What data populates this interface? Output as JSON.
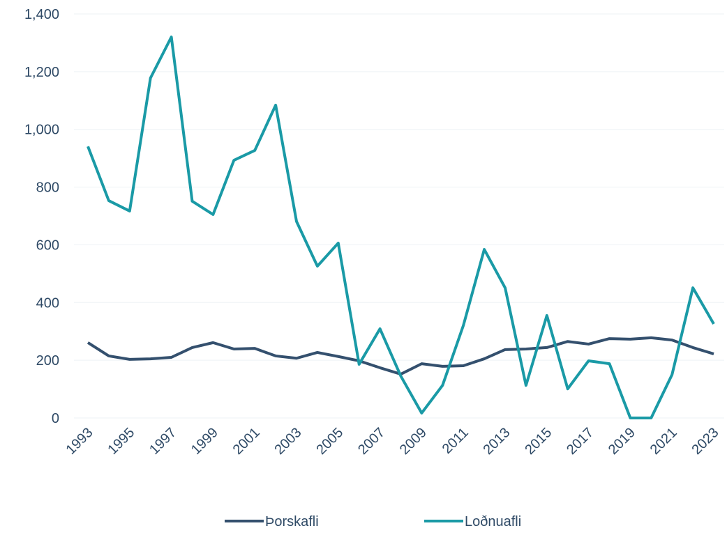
{
  "chart_data": {
    "type": "line",
    "x": [
      1993,
      1994,
      1995,
      1996,
      1997,
      1998,
      1999,
      2000,
      2001,
      2002,
      2003,
      2004,
      2005,
      2006,
      2007,
      2008,
      2009,
      2010,
      2011,
      2012,
      2013,
      2014,
      2015,
      2016,
      2017,
      2018,
      2019,
      2020,
      2021,
      2022,
      2023
    ],
    "xlim": [
      1993,
      2023
    ],
    "xticks": [
      1993,
      1995,
      1997,
      1999,
      2001,
      2003,
      2005,
      2007,
      2009,
      2011,
      2013,
      2015,
      2017,
      2019,
      2021,
      2023
    ],
    "ylim": [
      0,
      1400
    ],
    "yticks": [
      0,
      200,
      400,
      600,
      800,
      {
        "value": 1000,
        "label": "1,000"
      },
      {
        "value": 1200,
        "label": "1,200"
      },
      {
        "value": 1400,
        "label": "1,400"
      }
    ],
    "grid": true,
    "legend": "bottom",
    "series": [
      {
        "name": "Þorskafli",
        "color": "#34506e",
        "values": [
          261,
          215,
          203,
          205,
          210,
          244,
          261,
          239,
          241,
          215,
          207,
          227,
          213,
          198,
          174,
          152,
          188,
          179,
          181,
          205,
          237,
          239,
          244,
          265,
          256,
          275,
          273,
          278,
          270,
          244,
          222
        ]
      },
      {
        "name": "Loðnuafli",
        "color": "#1a9aa6",
        "values": [
          941,
          753,
          717,
          1178,
          1320,
          751,
          705,
          893,
          927,
          1084,
          681,
          526,
          606,
          186,
          309,
          145,
          17,
          113,
          321,
          584,
          451,
          113,
          355,
          101,
          198,
          188,
          0,
          0,
          150,
          451,
          326
        ]
      }
    ]
  }
}
